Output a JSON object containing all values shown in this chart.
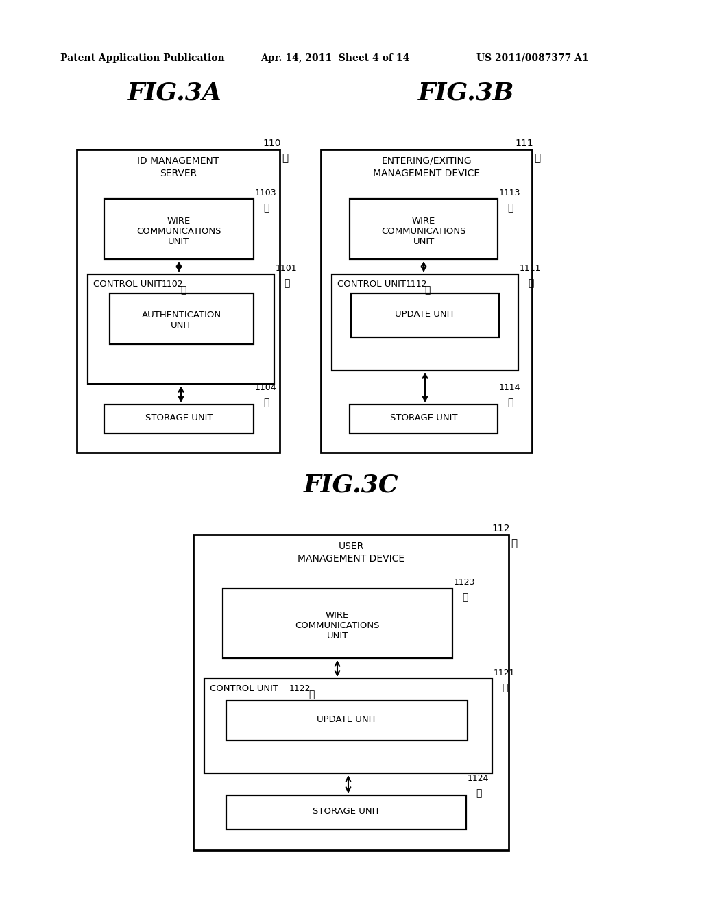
{
  "bg_color": "#ffffff",
  "header_left": "Patent Application Publication",
  "header_mid": "Apr. 14, 2011  Sheet 4 of 14",
  "header_right": "US 2011/0087377 A1",
  "fig3a_title": "FIG.3A",
  "fig3b_title": "FIG.3B",
  "fig3c_title": "FIG.3C",
  "fig3a": {
    "outer_label": "110",
    "outer_title_line1": "ID MANAGEMENT",
    "outer_title_line2": "SERVER",
    "wire_box_label": "1103",
    "wire_box_text": "WIRE\nCOMMUNICATIONS\nUNIT",
    "control_outer_label": "1101",
    "control_label": "1102",
    "control_text": "CONTROL UNIT",
    "auth_text": "AUTHENTICATION\nUNIT",
    "storage_label": "1104",
    "storage_text": "STORAGE UNIT"
  },
  "fig3b": {
    "outer_label": "111",
    "outer_title_line1": "ENTERING/EXITING",
    "outer_title_line2": "MANAGEMENT DEVICE",
    "wire_box_label": "1113",
    "wire_box_text": "WIRE\nCOMMUNICATIONS\nUNIT",
    "control_outer_label": "1111",
    "control_label": "1112",
    "control_text": "CONTROL UNIT",
    "update_text": "UPDATE UNIT",
    "storage_label": "1114",
    "storage_text": "STORAGE UNIT"
  },
  "fig3c": {
    "outer_label": "112",
    "outer_title_line1": "USER",
    "outer_title_line2": "MANAGEMENT DEVICE",
    "wire_box_label": "1123",
    "wire_box_text": "WIRE\nCOMMUNICATIONS\nUNIT",
    "control_outer_label": "1121",
    "control_label": "1122",
    "control_text": "CONTROL UNIT",
    "update_text": "UPDATE UNIT",
    "storage_label": "1124",
    "storage_text": "STORAGE UNIT"
  }
}
